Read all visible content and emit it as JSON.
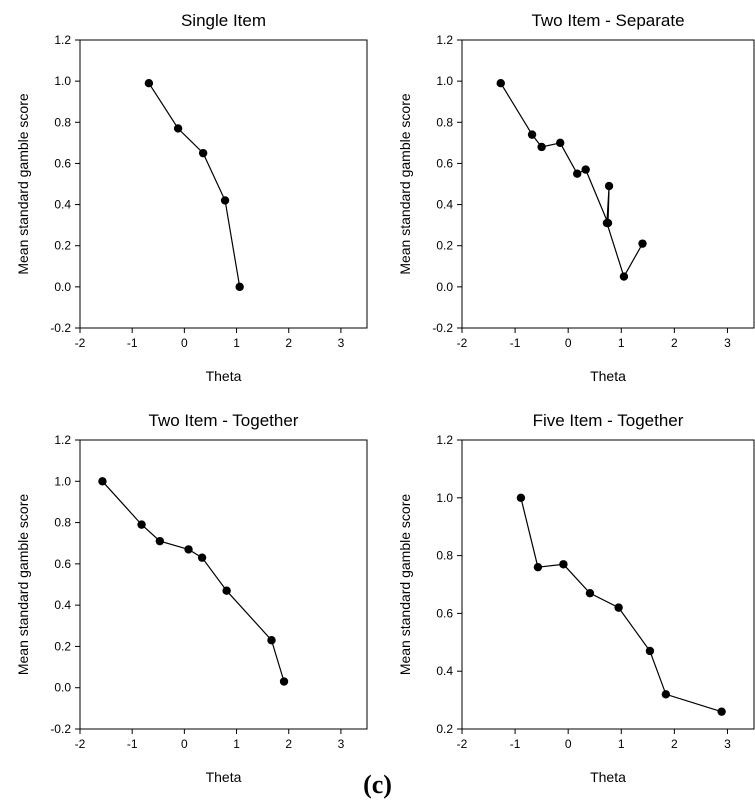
{
  "figure": {
    "caption": "(c)"
  },
  "chart_data": [
    {
      "type": "line",
      "title": "Single Item",
      "xlabel": "Theta",
      "ylabel": "Mean standard gamble score",
      "xlim": [
        -2,
        3.5
      ],
      "ylim": [
        -0.2,
        1.2
      ],
      "xticks": [
        -2,
        -1,
        0,
        1,
        2,
        3
      ],
      "yticks": [
        -0.2,
        0.0,
        0.2,
        0.4,
        0.6,
        0.8,
        1.0,
        1.2
      ],
      "series": [
        {
          "x": [
            -0.68,
            -0.12,
            0.36,
            0.78,
            1.06
          ],
          "y": [
            0.99,
            0.77,
            0.65,
            0.42,
            0.0
          ]
        }
      ]
    },
    {
      "type": "line",
      "title": "Two Item - Separate",
      "xlabel": "Theta",
      "ylabel": "Mean standard gamble score",
      "xlim": [
        -2,
        3.5
      ],
      "ylim": [
        -0.2,
        1.2
      ],
      "xticks": [
        -2,
        -1,
        0,
        1,
        2,
        3
      ],
      "yticks": [
        -0.2,
        0.0,
        0.2,
        0.4,
        0.6,
        0.8,
        1.0,
        1.2
      ],
      "series": [
        {
          "x": [
            -1.27,
            -0.68,
            -0.5,
            -0.15,
            0.17,
            0.33,
            0.75,
            0.77,
            0.73,
            1.05,
            1.4
          ],
          "y": [
            0.99,
            0.74,
            0.68,
            0.7,
            0.55,
            0.57,
            0.31,
            0.49,
            0.31,
            0.05,
            0.21
          ]
        }
      ]
    },
    {
      "type": "line",
      "title": "Two Item - Together",
      "xlabel": "Theta",
      "ylabel": "Mean standard gamble score",
      "xlim": [
        -2,
        3.5
      ],
      "ylim": [
        -0.2,
        1.2
      ],
      "xticks": [
        -2,
        -1,
        0,
        1,
        2,
        3
      ],
      "yticks": [
        -0.2,
        0.0,
        0.2,
        0.4,
        0.6,
        0.8,
        1.0,
        1.2
      ],
      "series": [
        {
          "x": [
            -1.57,
            -0.82,
            -0.47,
            0.08,
            0.34,
            0.81,
            1.67,
            1.91
          ],
          "y": [
            1.0,
            0.79,
            0.71,
            0.67,
            0.63,
            0.47,
            0.23,
            0.03
          ]
        }
      ]
    },
    {
      "type": "line",
      "title": "Five Item - Together",
      "xlabel": "Theta",
      "ylabel": "Mean standard gamble score",
      "xlim": [
        -2,
        3.5
      ],
      "ylim": [
        0.2,
        1.2
      ],
      "xticks": [
        -2,
        -1,
        0,
        1,
        2,
        3
      ],
      "yticks": [
        0.2,
        0.4,
        0.6,
        0.8,
        1.0,
        1.2
      ],
      "series": [
        {
          "x": [
            -0.89,
            -0.57,
            -0.09,
            0.41,
            0.95,
            1.54,
            1.84,
            2.89
          ],
          "y": [
            1.0,
            0.76,
            0.77,
            0.67,
            0.62,
            0.47,
            0.32,
            0.26
          ]
        }
      ]
    }
  ]
}
